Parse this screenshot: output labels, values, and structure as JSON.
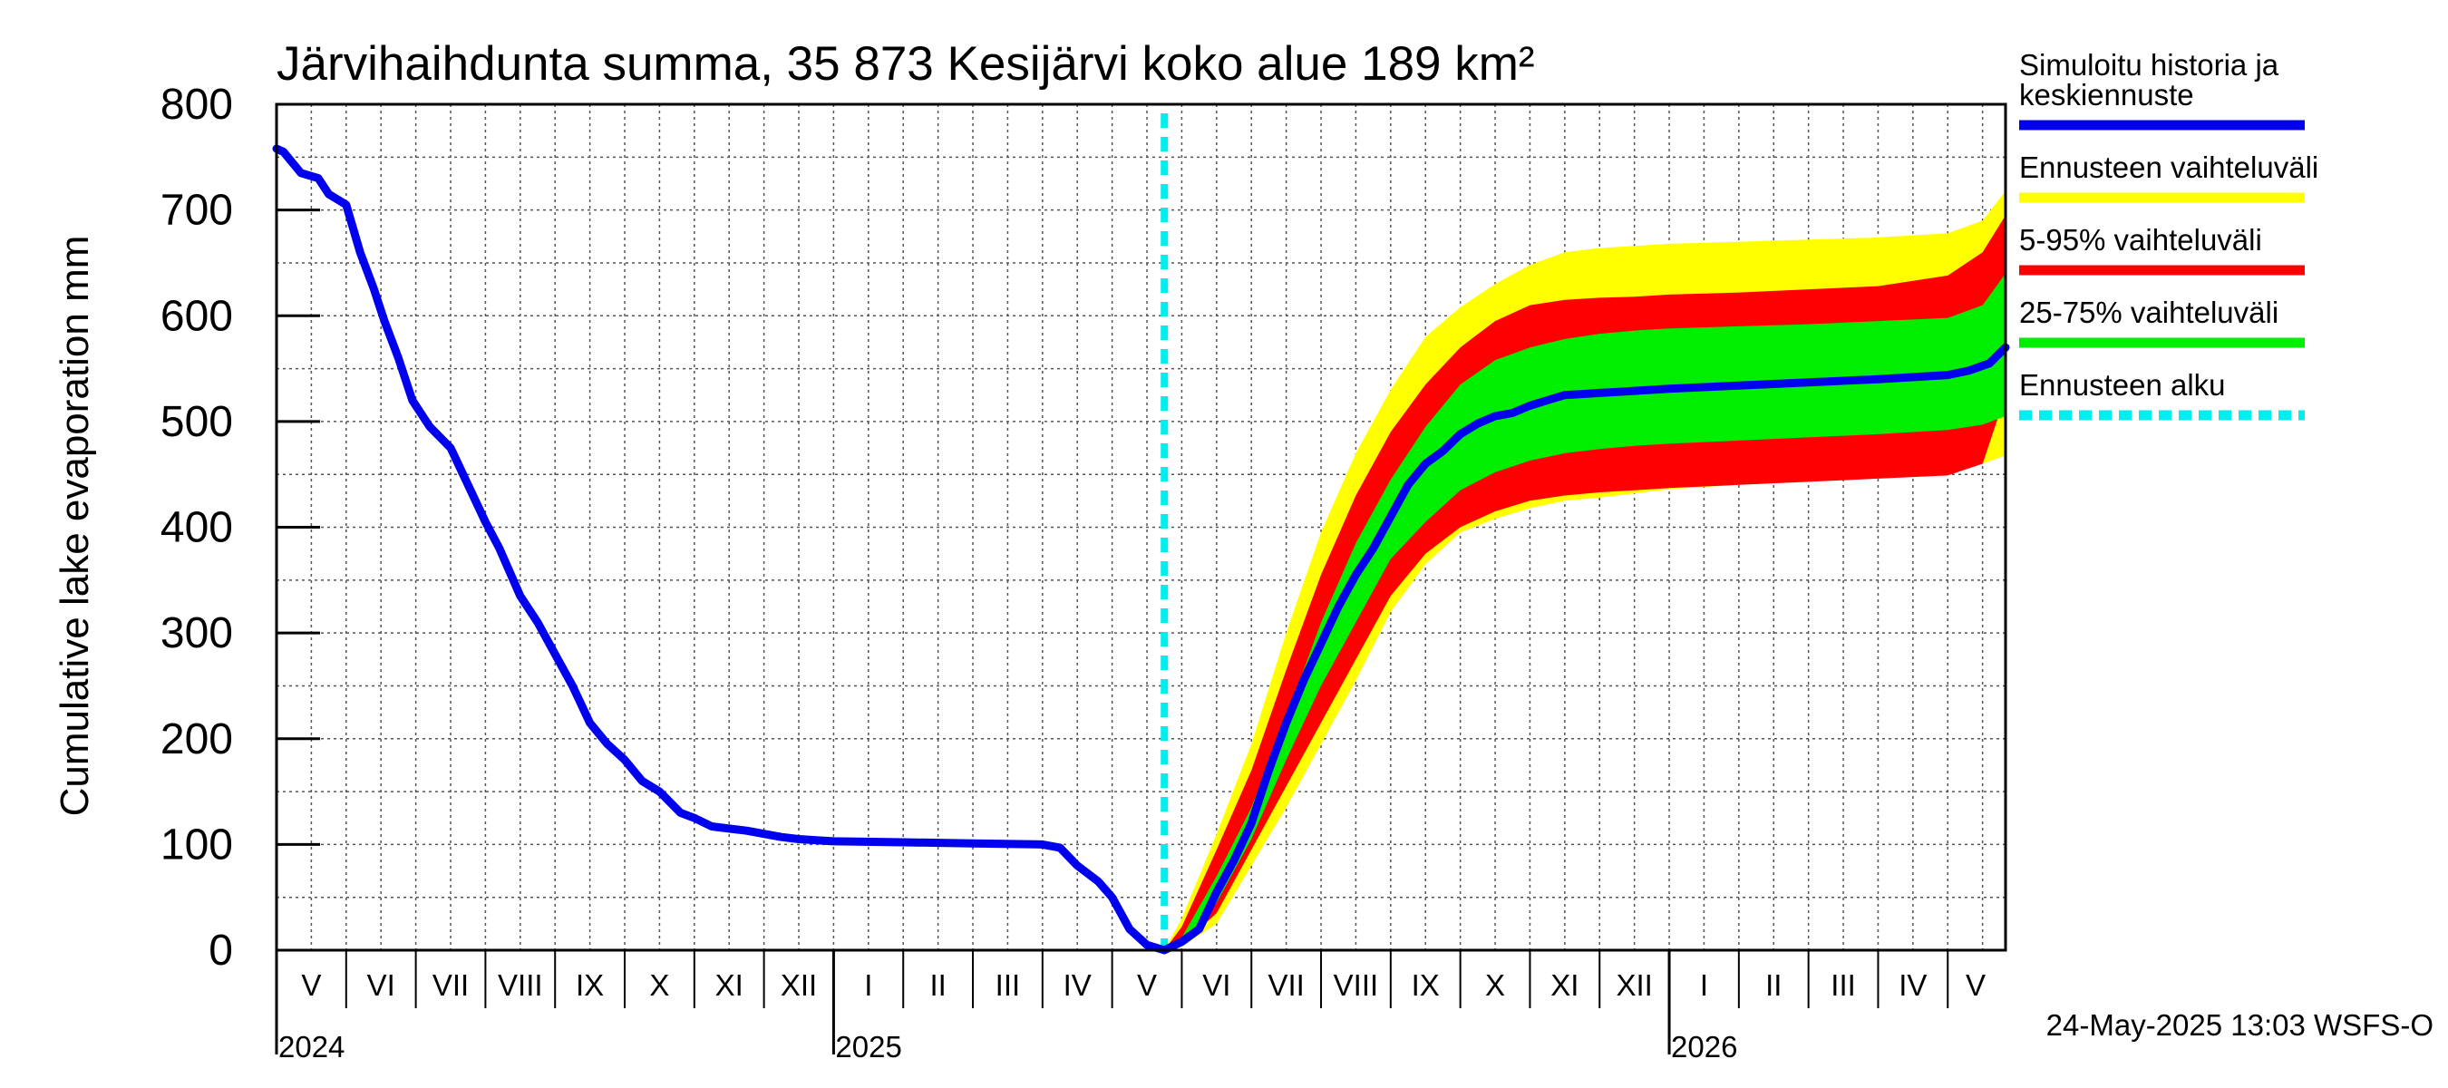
{
  "chart_data": {
    "type": "area",
    "title": "Järvihaihdunta summa, 35 873 Kesijärvi koko alue 189 km²",
    "ylabel": "Cumulative lake evaporation   mm",
    "xlabel": "",
    "ylim": [
      0,
      800
    ],
    "yticks": [
      0,
      100,
      200,
      300,
      400,
      500,
      600,
      700,
      800
    ],
    "grid": true,
    "legend_position": "right",
    "x_unit": "months since 2024-05-01",
    "xlim": [
      0,
      24.83
    ],
    "month_labels": [
      {
        "label": "V",
        "x": 0.5
      },
      {
        "label": "VI",
        "x": 1.5
      },
      {
        "label": "VII",
        "x": 2.5
      },
      {
        "label": "VIII",
        "x": 3.5
      },
      {
        "label": "IX",
        "x": 4.5
      },
      {
        "label": "X",
        "x": 5.5
      },
      {
        "label": "XI",
        "x": 6.5
      },
      {
        "label": "XII",
        "x": 7.5
      },
      {
        "label": "I",
        "x": 8.5
      },
      {
        "label": "II",
        "x": 9.5
      },
      {
        "label": "III",
        "x": 10.5
      },
      {
        "label": "IV",
        "x": 11.5
      },
      {
        "label": "V",
        "x": 12.5
      },
      {
        "label": "VI",
        "x": 13.5
      },
      {
        "label": "VII",
        "x": 14.5
      },
      {
        "label": "VIII",
        "x": 15.5
      },
      {
        "label": "IX",
        "x": 16.5
      },
      {
        "label": "X",
        "x": 17.5
      },
      {
        "label": "XI",
        "x": 18.5
      },
      {
        "label": "XII",
        "x": 19.5
      },
      {
        "label": "I",
        "x": 20.5
      },
      {
        "label": "II",
        "x": 21.5
      },
      {
        "label": "III",
        "x": 22.5
      },
      {
        "label": "IV",
        "x": 23.5
      },
      {
        "label": "V",
        "x": 24.4
      }
    ],
    "year_labels": [
      {
        "label": "2024",
        "x": 0
      },
      {
        "label": "2025",
        "x": 8
      },
      {
        "label": "2026",
        "x": 20
      }
    ],
    "forecast_start_x": 12.75,
    "legend": [
      {
        "label_lines": [
          "Simuloitu historia ja",
          "keskiennuste"
        ],
        "color": "#0000ee",
        "style": "solid"
      },
      {
        "label_lines": [
          "Ennusteen vaihteluväli"
        ],
        "color": "#ffff00",
        "style": "solid"
      },
      {
        "label_lines": [
          "5-95% vaihteluväli"
        ],
        "color": "#ff0000",
        "style": "solid"
      },
      {
        "label_lines": [
          "25-75% vaihteluväli"
        ],
        "color": "#00ee00",
        "style": "solid"
      },
      {
        "label_lines": [
          "Ennusteen alku"
        ],
        "color": "#00eeee",
        "style": "dashed"
      }
    ],
    "series": [
      {
        "name": "Simuloitu historia ja keskiennuste",
        "color": "#0000ee",
        "x": [
          0,
          0.1,
          0.35,
          0.6,
          0.75,
          1.0,
          1.2,
          1.4,
          1.55,
          1.75,
          1.95,
          2.2,
          2.5,
          2.75,
          3.0,
          3.2,
          3.5,
          3.75,
          4.0,
          4.25,
          4.5,
          4.75,
          5.0,
          5.25,
          5.5,
          5.8,
          6.0,
          6.25,
          6.5,
          6.75,
          7.0,
          7.25,
          7.5,
          7.75,
          8.0,
          9.0,
          10.0,
          11.0,
          11.25,
          11.5,
          11.8,
          12.0,
          12.25,
          12.5,
          12.75,
          13.0,
          13.25,
          13.5,
          13.75,
          14.0,
          14.25,
          14.5,
          14.75,
          15.0,
          15.25,
          15.5,
          15.75,
          16.0,
          16.25,
          16.5,
          16.75,
          17.0,
          17.25,
          17.5,
          17.75,
          18.0,
          18.25,
          18.5,
          18.75,
          19.0,
          19.5,
          20.0,
          21.0,
          22.0,
          23.0,
          24.0,
          24.3,
          24.6,
          24.83
        ],
        "values": [
          758,
          755,
          735,
          730,
          715,
          705,
          660,
          625,
          595,
          560,
          520,
          495,
          475,
          440,
          405,
          380,
          335,
          310,
          280,
          250,
          215,
          195,
          180,
          160,
          150,
          130,
          125,
          117,
          115,
          113,
          110,
          107,
          105,
          104,
          103,
          102,
          101,
          100,
          97,
          80,
          65,
          50,
          20,
          5,
          0,
          8,
          20,
          55,
          85,
          120,
          170,
          215,
          255,
          290,
          325,
          355,
          380,
          410,
          440,
          460,
          472,
          488,
          498,
          505,
          508,
          515,
          520,
          525,
          526,
          527,
          529,
          531,
          534,
          537,
          540,
          544,
          548,
          555,
          570
        ]
      },
      {
        "name": "Ennusteen vaihteluväli",
        "color": "#ffff00",
        "x": [
          12.75,
          13.0,
          13.5,
          14.0,
          14.5,
          15.0,
          15.5,
          16.0,
          16.5,
          17.0,
          17.5,
          18.0,
          18.5,
          19.0,
          19.5,
          20.0,
          21.0,
          22.0,
          23.0,
          24.0,
          24.5,
          24.83
        ],
        "upper": [
          0,
          30,
          110,
          195,
          300,
          395,
          470,
          530,
          580,
          608,
          630,
          648,
          660,
          664,
          666,
          668,
          670,
          672,
          674,
          678,
          690,
          718
        ],
        "lower": [
          0,
          3,
          25,
          80,
          135,
          195,
          255,
          320,
          365,
          395,
          408,
          418,
          425,
          428,
          432,
          436,
          440,
          445,
          450,
          455,
          460,
          468
        ]
      },
      {
        "name": "5-95% vaihteluväli",
        "color": "#ff0000",
        "x": [
          12.75,
          13.0,
          13.5,
          14.0,
          14.5,
          15.0,
          15.5,
          16.0,
          16.5,
          17.0,
          17.5,
          18.0,
          18.5,
          19.0,
          19.5,
          20.0,
          21.0,
          22.0,
          23.0,
          24.0,
          24.5,
          24.83
        ],
        "upper": [
          0,
          22,
          95,
          170,
          265,
          355,
          430,
          490,
          535,
          570,
          595,
          610,
          615,
          617,
          618,
          620,
          622,
          625,
          628,
          638,
          660,
          695
        ],
        "lower": [
          0,
          5,
          35,
          95,
          155,
          215,
          275,
          335,
          375,
          400,
          415,
          425,
          430,
          433,
          435,
          437,
          440,
          443,
          446,
          449,
          460,
          525
        ]
      },
      {
        "name": "25-75% vaihteluväli",
        "color": "#00ee00",
        "x": [
          12.75,
          13.0,
          13.5,
          14.0,
          14.5,
          15.0,
          15.5,
          16.0,
          16.5,
          17.0,
          17.5,
          18.0,
          18.5,
          19.0,
          19.5,
          20.0,
          21.0,
          22.0,
          23.0,
          24.0,
          24.5,
          24.83
        ],
        "upper": [
          0,
          12,
          70,
          135,
          220,
          310,
          385,
          445,
          495,
          535,
          558,
          570,
          578,
          583,
          586,
          588,
          590,
          592,
          595,
          598,
          610,
          640
        ],
        "lower": [
          0,
          6,
          45,
          105,
          180,
          250,
          310,
          370,
          405,
          435,
          452,
          463,
          470,
          474,
          477,
          479,
          482,
          485,
          488,
          492,
          497,
          505
        ]
      }
    ]
  },
  "footer": {
    "timestamp": "24-May-2025 13:03 WSFS-O"
  }
}
